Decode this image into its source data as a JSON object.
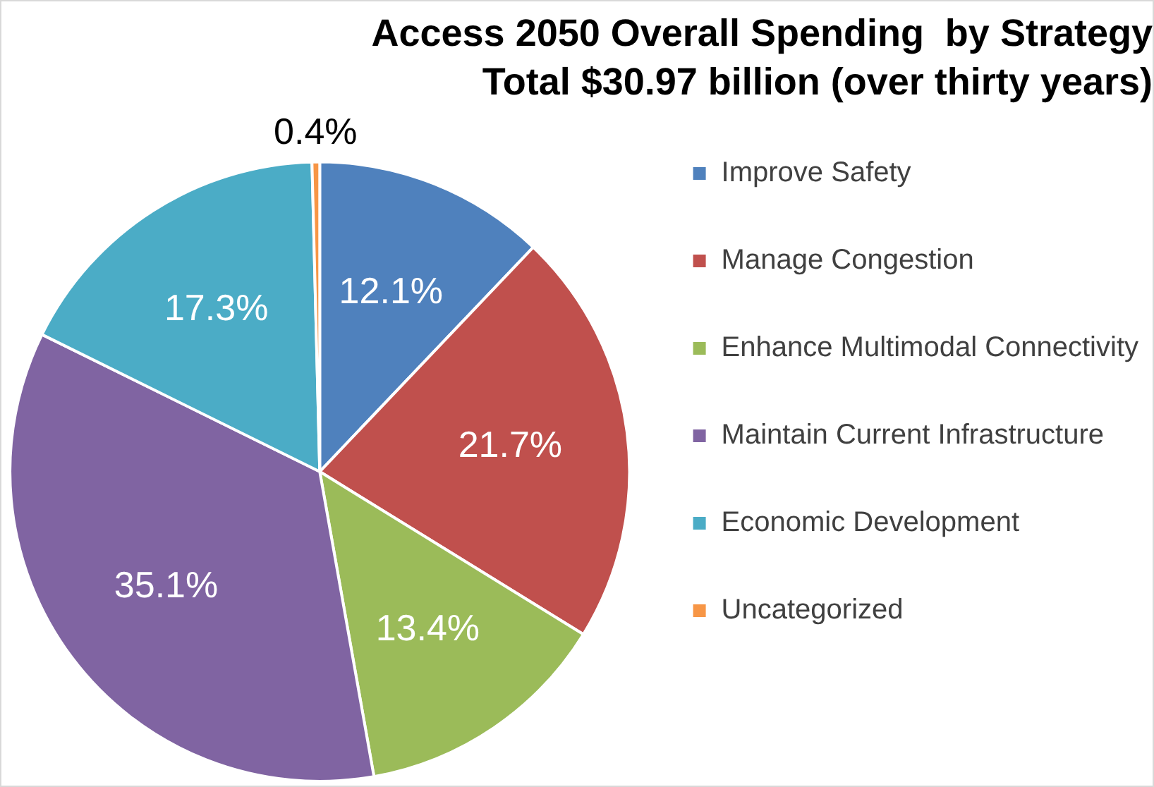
{
  "chart_data": {
    "type": "pie",
    "title": "Access 2050 Overall Spending  by Strategy",
    "subtitle": "Total $30.97 billion (over thirty years)",
    "categories": [
      "Improve Safety",
      "Manage Congestion",
      "Enhance Multimodal Connectivity",
      "Maintain Current Infrastructure",
      "Economic Development",
      "Uncategorized"
    ],
    "values": [
      12.1,
      21.7,
      13.4,
      35.1,
      17.3,
      0.4
    ],
    "colors": [
      "#4f81bd",
      "#c0504d",
      "#9bbb59",
      "#8064a2",
      "#4bacc6",
      "#f79646"
    ],
    "value_labels": [
      "12.1%",
      "21.7%",
      "13.4%",
      "35.1%",
      "17.3%",
      "0.4%"
    ],
    "legend": "right"
  }
}
